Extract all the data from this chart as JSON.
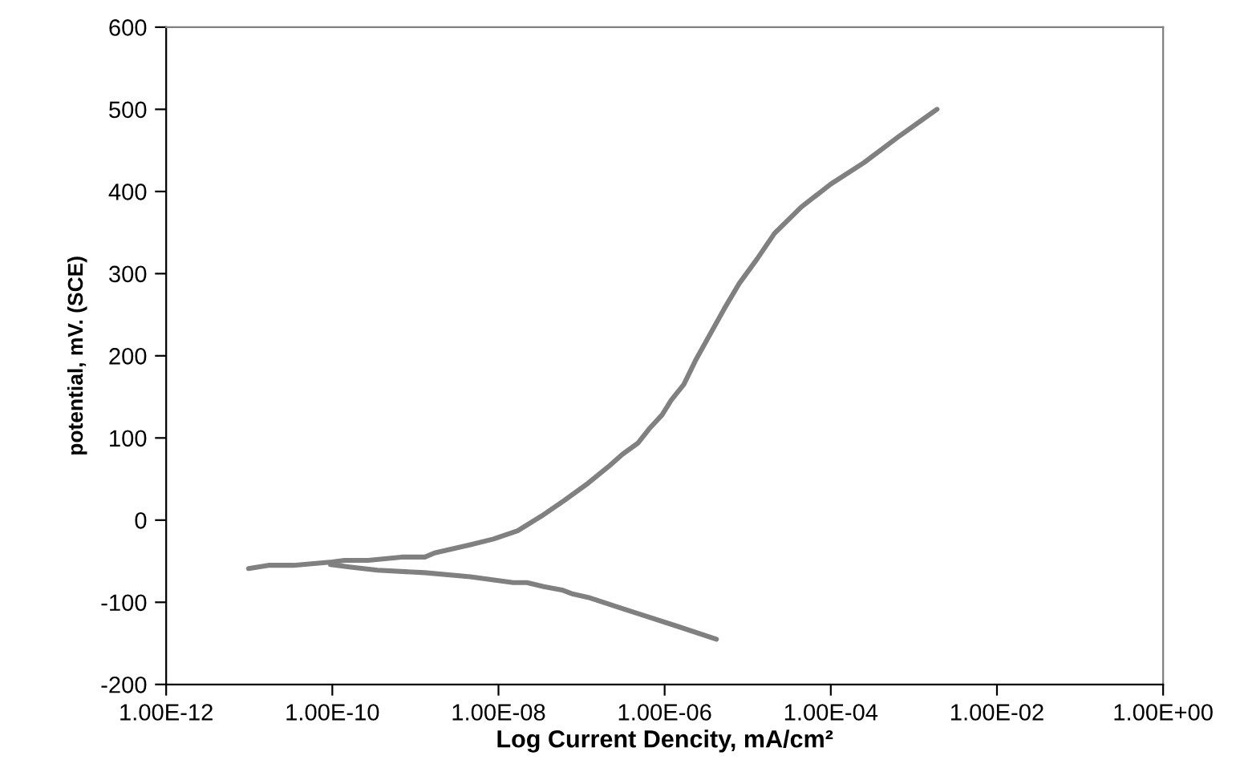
{
  "chart_data": {
    "type": "line",
    "xlabel": "Log Current Dencity, mA/cm²",
    "ylabel": "potential, mV. (SCE)",
    "log": "x",
    "grid": false,
    "marker": "none",
    "line_style": "solid",
    "xlim": [
      1e-12,
      1
    ],
    "ylim": [
      -200,
      600
    ],
    "xticks": [
      {
        "value": 1e-12,
        "label": "1.00E-12"
      },
      {
        "value": 1e-10,
        "label": "1.00E-10"
      },
      {
        "value": 1e-08,
        "label": "1.00E-08"
      },
      {
        "value": 1e-06,
        "label": "1.00E-06"
      },
      {
        "value": 0.0001,
        "label": "1.00E-04"
      },
      {
        "value": 0.01,
        "label": "1.00E-02"
      },
      {
        "value": 1,
        "label": "1.00E+00"
      }
    ],
    "yticks": [
      -200,
      -100,
      0,
      100,
      200,
      300,
      400,
      500,
      600
    ],
    "series": [
      {
        "color": "#808080",
        "x": [
          9.8e-12,
          1.7e-11,
          3.4e-11,
          1e-10,
          1.4e-10,
          2.7e-10,
          6.8e-10,
          1.3e-09,
          1.7e-09,
          4.6e-09,
          8.7e-09,
          1.7e-08,
          3.3e-08,
          6.2e-08,
          1.2e-07,
          2.1e-07,
          3.1e-07,
          4.8e-07,
          6.5e-07,
          9.3e-07,
          1.2e-06,
          1.7e-06,
          2.4e-06,
          3.3e-06,
          5.2e-06,
          7.9e-06,
          1.3e-05,
          2.1e-05,
          4.4e-05,
          0.0001,
          0.00025,
          0.00068,
          0.0019
        ],
        "values": [
          -59,
          -55,
          -55,
          -51,
          -49,
          -49,
          -45,
          -45,
          -40,
          -30,
          -23,
          -13,
          5,
          24,
          45,
          65,
          80,
          94,
          111,
          128,
          146,
          165,
          196,
          221,
          257,
          288,
          318,
          349,
          381,
          409,
          435,
          468,
          500
        ]
      },
      {
        "color": "#808080",
        "x": [
          9.5e-11,
          1.6e-10,
          3.5e-10,
          1.3e-09,
          4.6e-09,
          1.5e-08,
          2.2e-08,
          3.5e-08,
          5.8e-08,
          7.9e-08,
          1.2e-07,
          2.4e-07,
          5.2e-07,
          1.4e-06,
          4.2e-06
        ],
        "values": [
          -54,
          -57,
          -61,
          -64,
          -69,
          -76,
          -76,
          -81,
          -85,
          -90,
          -94,
          -104,
          -115,
          -129,
          -145
        ]
      }
    ]
  }
}
